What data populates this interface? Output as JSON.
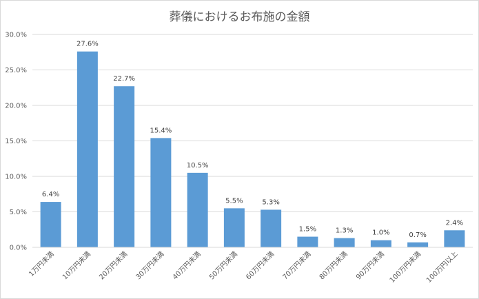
{
  "chart_data": {
    "type": "bar",
    "title": "葬儀におけるお布施の金額",
    "categories": [
      "1万円未満",
      "10万円未満",
      "20万円未満",
      "30万円未満",
      "40万円未満",
      "50万円未満",
      "60万円未満",
      "70万円未満",
      "80万円未満",
      "90万円未満",
      "100万円未満",
      "100万円以上"
    ],
    "values": [
      6.4,
      27.6,
      22.7,
      15.4,
      10.5,
      5.5,
      5.3,
      1.5,
      1.3,
      1.0,
      0.7,
      2.4
    ],
    "data_labels": [
      "6.4%",
      "27.6%",
      "22.7%",
      "15.4%",
      "10.5%",
      "5.5%",
      "5.3%",
      "1.5%",
      "1.3%",
      "1.0%",
      "0.7%",
      "2.4%"
    ],
    "ylim": [
      0,
      30
    ],
    "yticks": [
      "0.0%",
      "5.0%",
      "10.0%",
      "15.0%",
      "20.0%",
      "25.0%",
      "30.0%"
    ],
    "xlabel": "",
    "ylabel": "",
    "grid": true,
    "legend": "none",
    "bar_color": "#5b9bd5",
    "grid_color": "#d9d9d9"
  }
}
